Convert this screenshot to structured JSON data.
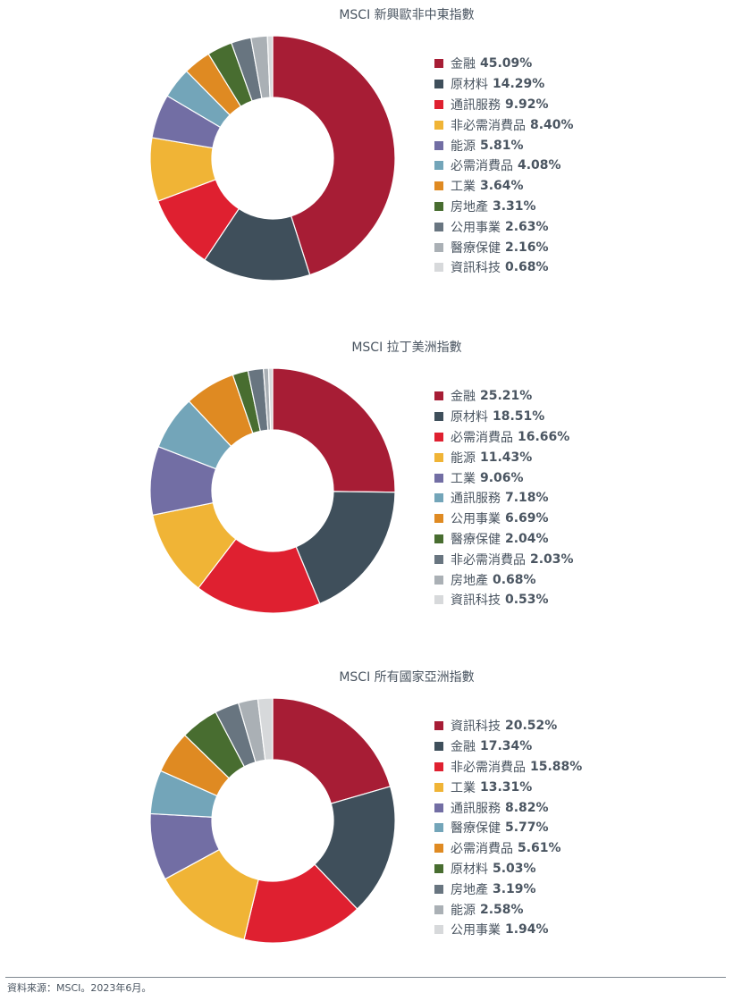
{
  "chart_data": [
    {
      "type": "pie",
      "title": "MSCI 新興歐非中東指數",
      "series": [
        {
          "label": "金融",
          "value_text": "45.09%",
          "value": 45.09,
          "color": "#a71d35"
        },
        {
          "label": "原材料",
          "value_text": "14.29%",
          "value": 14.29,
          "color": "#3f4f5b"
        },
        {
          "label": "通訊服務",
          "value_text": "9.92%",
          "value": 9.92,
          "color": "#df2030"
        },
        {
          "label": "非必需消費品",
          "value_text": "8.40%",
          "value": 8.4,
          "color": "#f0b436"
        },
        {
          "label": "能源",
          "value_text": "5.81%",
          "value": 5.81,
          "color": "#726ea4"
        },
        {
          "label": "必需消費品",
          "value_text": "4.08%",
          "value": 4.08,
          "color": "#73a5b9"
        },
        {
          "label": "工業",
          "value_text": "3.64%",
          "value": 3.64,
          "color": "#df8a22"
        },
        {
          "label": "房地產",
          "value_text": "3.31%",
          "value": 3.31,
          "color": "#486d30"
        },
        {
          "label": "公用事業",
          "value_text": "2.63%",
          "value": 2.63,
          "color": "#687580"
        },
        {
          "label": "醫療保健",
          "value_text": "2.16%",
          "value": 2.16,
          "color": "#aab0b5"
        },
        {
          "label": "資訊科技",
          "value_text": "0.68%",
          "value": 0.68,
          "color": "#d7d9db"
        }
      ]
    },
    {
      "type": "pie",
      "title": "MSCI 拉丁美洲指數",
      "series": [
        {
          "label": "金融",
          "value_text": "25.21%",
          "value": 25.21,
          "color": "#a71d35"
        },
        {
          "label": "原材料",
          "value_text": "18.51%",
          "value": 18.51,
          "color": "#3f4f5b"
        },
        {
          "label": "必需消費品",
          "value_text": "16.66%",
          "value": 16.66,
          "color": "#df2030"
        },
        {
          "label": "能源",
          "value_text": "11.43%",
          "value": 11.43,
          "color": "#f0b436"
        },
        {
          "label": "工業",
          "value_text": "9.06%",
          "value": 9.06,
          "color": "#726ea4"
        },
        {
          "label": "通訊服務",
          "value_text": "7.18%",
          "value": 7.18,
          "color": "#73a5b9"
        },
        {
          "label": "公用事業",
          "value_text": "6.69%",
          "value": 6.69,
          "color": "#df8a22"
        },
        {
          "label": "醫療保健",
          "value_text": "2.04%",
          "value": 2.04,
          "color": "#486d30"
        },
        {
          "label": "非必需消費品",
          "value_text": "2.03%",
          "value": 2.03,
          "color": "#687580"
        },
        {
          "label": "房地產",
          "value_text": "0.68%",
          "value": 0.68,
          "color": "#aab0b5"
        },
        {
          "label": "資訊科技",
          "value_text": "0.53%",
          "value": 0.53,
          "color": "#d7d9db"
        }
      ]
    },
    {
      "type": "pie",
      "title": "MSCI 所有國家亞洲指數",
      "series": [
        {
          "label": "資訊科技",
          "value_text": "20.52%",
          "value": 20.52,
          "color": "#a71d35"
        },
        {
          "label": "金融",
          "value_text": "17.34%",
          "value": 17.34,
          "color": "#3f4f5b"
        },
        {
          "label": "非必需消費品",
          "value_text": "15.88%",
          "value": 15.88,
          "color": "#df2030"
        },
        {
          "label": "工業",
          "value_text": "13.31%",
          "value": 13.31,
          "color": "#f0b436"
        },
        {
          "label": "通訊服務",
          "value_text": "8.82%",
          "value": 8.82,
          "color": "#726ea4"
        },
        {
          "label": "醫療保健",
          "value_text": "5.77%",
          "value": 5.77,
          "color": "#73a5b9"
        },
        {
          "label": "必需消費品",
          "value_text": "5.61%",
          "value": 5.61,
          "color": "#df8a22"
        },
        {
          "label": "原材料",
          "value_text": "5.03%",
          "value": 5.03,
          "color": "#486d30"
        },
        {
          "label": "房地產",
          "value_text": "3.19%",
          "value": 3.19,
          "color": "#687580"
        },
        {
          "label": "能源",
          "value_text": "2.58%",
          "value": 2.58,
          "color": "#aab0b5"
        },
        {
          "label": "公用事業",
          "value_text": "1.94%",
          "value": 1.94,
          "color": "#d7d9db"
        }
      ]
    }
  ],
  "footer": {
    "source": "資料來源：MSCI。2023年6月。"
  }
}
